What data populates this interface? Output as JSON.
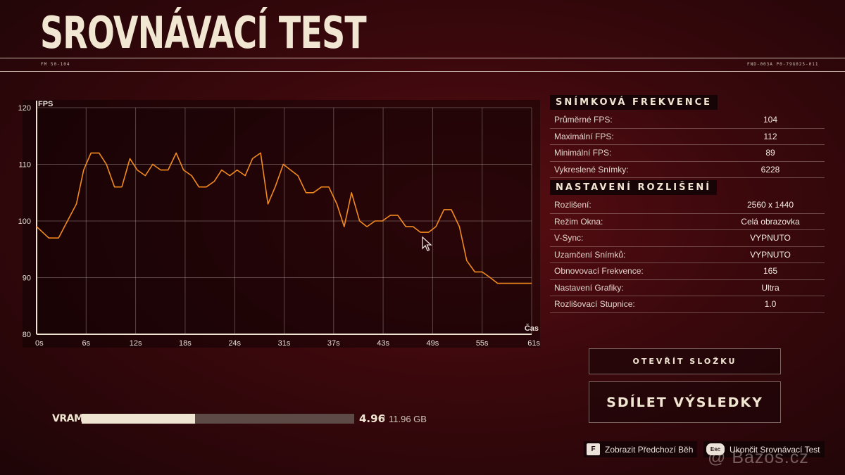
{
  "header": {
    "title": "SROVNÁVACÍ TEST",
    "micro_left": "FM 50-104",
    "micro_right": "FND-003A P0-79G025-011"
  },
  "chart_data": {
    "type": "line",
    "ylabel": "FPS",
    "xlabel": "Čas",
    "ylim": [
      80,
      120
    ],
    "xlim": [
      0,
      61
    ],
    "y_ticks": [
      120,
      110,
      100,
      90,
      80
    ],
    "x_ticks": [
      "0s",
      "6s",
      "12s",
      "18s",
      "24s",
      "31s",
      "37s",
      "43s",
      "49s",
      "55s",
      "61s"
    ],
    "grid": true,
    "line_color": "#f28a1e",
    "series": [
      {
        "x": [
          0,
          1.5,
          2.7,
          3.8,
          4.9,
          5.8,
          6.7,
          7.7,
          8.6,
          9.6,
          10.5,
          11.5,
          12.4,
          13.4,
          14.3,
          15.3,
          16.2,
          17.2,
          18.1,
          19.1,
          20.0,
          20.9,
          21.9,
          22.8,
          23.8,
          24.7,
          25.7,
          26.6,
          27.6,
          28.5,
          29.4,
          30.4,
          31.3,
          32.2,
          33.2,
          34.1,
          35.1,
          36.0,
          37.0,
          37.9,
          38.8,
          39.8,
          40.7,
          41.7,
          42.6,
          43.6,
          44.5,
          45.5,
          46.4,
          47.3,
          48.3,
          49.2,
          50.2,
          51.1,
          52.1,
          53.0,
          54.0,
          54.9,
          55.9,
          56.8,
          57.8,
          58.7,
          59.6,
          60.6,
          61.0
        ],
        "y": [
          99,
          97,
          97,
          100,
          103,
          109,
          112,
          112,
          110,
          106,
          106,
          111,
          109,
          108,
          110,
          109,
          109,
          112,
          109,
          108,
          106,
          106,
          107,
          109,
          108,
          109,
          108,
          111,
          112,
          103,
          106,
          110,
          109,
          108,
          105,
          105,
          106,
          106,
          103,
          99,
          105,
          100,
          99,
          100,
          100,
          101,
          101,
          99,
          99,
          98,
          98,
          99,
          102,
          102,
          99,
          93,
          91,
          91,
          90,
          89,
          89,
          89,
          89,
          89,
          89
        ]
      }
    ]
  },
  "framerate": {
    "heading": "SNÍMKOVÁ FREKVENCE",
    "rows": [
      {
        "label": "Průměrné FPS:",
        "value": "104"
      },
      {
        "label": "Maximální FPS:",
        "value": "112"
      },
      {
        "label": "Minimální FPS:",
        "value": "89"
      },
      {
        "label": "Vykreslené Snímky:",
        "value": "6228"
      }
    ]
  },
  "resolution": {
    "heading": "NASTAVENÍ ROZLIŠENÍ",
    "rows": [
      {
        "label": "Rozlišení:",
        "value": "2560 x 1440"
      },
      {
        "label": "Režim Okna:",
        "value": "Celá obrazovka"
      },
      {
        "label": "V-Sync:",
        "value": "VYPNUTO"
      },
      {
        "label": "Uzamčení Snímků:",
        "value": "VYPNUTO"
      },
      {
        "label": "Obnovovací Frekvence:",
        "value": "165"
      },
      {
        "label": "Nastavení Grafiky:",
        "value": "Ultra"
      },
      {
        "label": "Rozlišovací Stupnice:",
        "value": "1.0"
      }
    ]
  },
  "buttons": {
    "open_folder": "OTEVŘÍT SLOŽKU",
    "share": "SDÍLET VÝSLEDKY"
  },
  "vram": {
    "label": "VRAM",
    "used": "4.96",
    "separator": "/",
    "total": "11.96 GB",
    "fill_fraction": 0.415
  },
  "hints": {
    "prev_key": "F",
    "prev_label": "Zobrazit Předchozí Běh",
    "exit_key": "Esc",
    "exit_label": "Ukončit Srovnávací Test"
  },
  "watermark": "@ Bazos.cz",
  "colors": {
    "accent_line": "#f28a1e",
    "cream": "#f1e6d2",
    "background": "#3a080c"
  }
}
